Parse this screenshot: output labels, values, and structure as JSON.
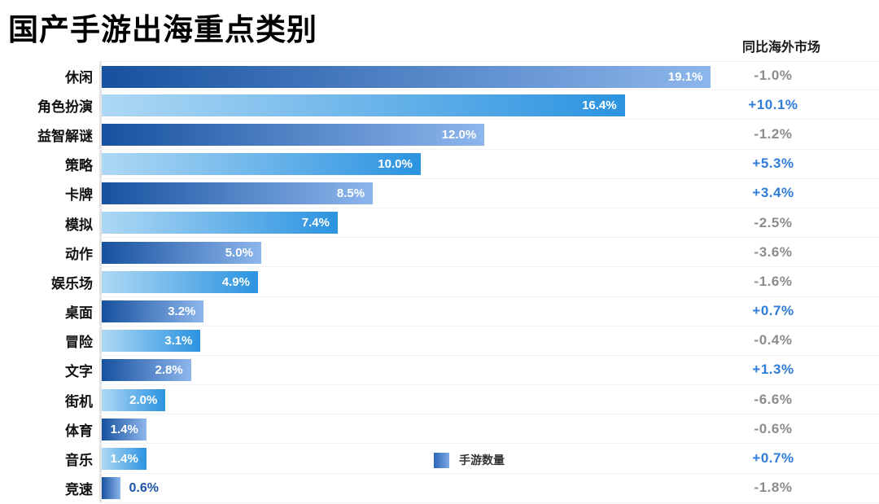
{
  "header": {
    "title": "国产手游出海重点类别",
    "right_column_title": "同比海外市场"
  },
  "legend": {
    "label": "手游数量"
  },
  "colors": {
    "bar_dark_start": "#17519f",
    "bar_dark_end": "#8db6ec",
    "bar_light_start": "#aed8f4",
    "bar_light_end": "#2b93e0",
    "positive_change": "#2f7cd9",
    "negative_change": "#8c8c8c",
    "bar_label_inside": "#ffffff",
    "bar_label_outside": "#1b54a8",
    "row_separator": "#f3f3f3",
    "axis_line": "#e3e3e3"
  },
  "chart_data": {
    "type": "bar",
    "orientation": "horizontal",
    "title": "国产手游出海重点类别",
    "legend": [
      "手游数量"
    ],
    "legend_position": "bottom-center",
    "grid": false,
    "xlim": [
      0,
      20
    ],
    "categories": [
      "休闲",
      "角色扮演",
      "益智解谜",
      "策略",
      "卡牌",
      "模拟",
      "动作",
      "娱乐场",
      "桌面",
      "冒险",
      "文字",
      "街机",
      "体育",
      "音乐",
      "竞速"
    ],
    "series": [
      {
        "name": "手游数量",
        "unit": "%",
        "values": [
          19.1,
          16.4,
          12.0,
          10.0,
          8.5,
          7.4,
          5.0,
          4.9,
          3.2,
          3.1,
          2.8,
          2.0,
          1.4,
          1.4,
          0.6
        ],
        "value_labels": [
          "19.1%",
          "16.4%",
          "12.0%",
          "10.0%",
          "8.5%",
          "7.4%",
          "5.0%",
          "4.9%",
          "3.2%",
          "3.1%",
          "2.8%",
          "2.0%",
          "1.4%",
          "1.4%",
          "0.6%"
        ]
      },
      {
        "name": "同比海外市场",
        "unit": "%",
        "value_labels": [
          "-1.0%",
          "+10.1%",
          "-1.2%",
          "+5.3%",
          "+3.4%",
          "-2.5%",
          "-3.6%",
          "-1.6%",
          "+0.7%",
          "-0.4%",
          "+1.3%",
          "-6.6%",
          "-0.6%",
          "+0.7%",
          "-1.8%"
        ]
      }
    ],
    "bar_style_alternating": [
      "dark-gradient",
      "light-gradient"
    ]
  }
}
